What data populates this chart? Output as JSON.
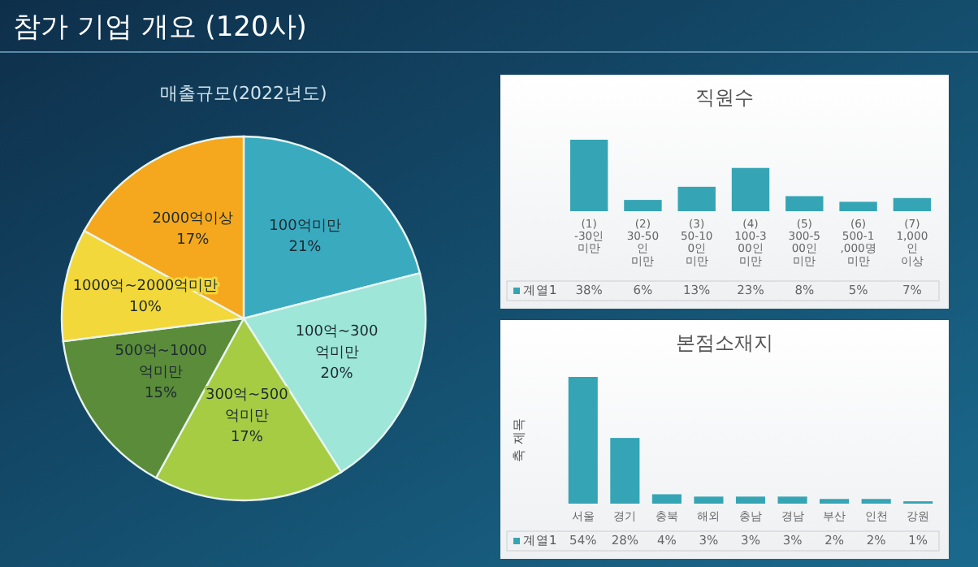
{
  "chart_data": [
    {
      "type": "pie",
      "title": "참가 기업 개요 (120사)",
      "subtitle": "매출규모(2022년도)",
      "categories": [
        "100억미만",
        "100억~300억미만",
        "300억~500억미만",
        "500억~1000억미만",
        "1000억~2000억미만",
        "2000억이상"
      ],
      "values": [
        21,
        20,
        17,
        15,
        10,
        17
      ],
      "value_labels": [
        "21%",
        "20%",
        "17%",
        "15%",
        "10%",
        "17%"
      ],
      "colors": [
        "#3aaabf",
        "#9de6d8",
        "#a6cc44",
        "#5b8c3a",
        "#f2d83a",
        "#f5a81e"
      ]
    },
    {
      "type": "bar",
      "title": "직원수",
      "categories": [
        "(1) -30인 미만",
        "(2) 30-50인 미만",
        "(3) 50-100인 미만",
        "(4) 100-300인 미만",
        "(5) 300-500인 미만",
        "(6) 500-1,000명 미만",
        "(7) 1,000인 이상"
      ],
      "series": [
        {
          "name": "계열1",
          "color": "#35a5b5",
          "values": [
            38,
            6,
            13,
            23,
            8,
            5,
            7
          ],
          "value_labels": [
            "38%",
            "6%",
            "13%",
            "23%",
            "8%",
            "5%",
            "7%"
          ]
        }
      ],
      "legend": "bottom"
    },
    {
      "type": "bar",
      "title": "본점소재지",
      "ylabel": "축 제목",
      "categories": [
        "서울",
        "경기",
        "충북",
        "해외",
        "충남",
        "경남",
        "부산",
        "인천",
        "강원"
      ],
      "series": [
        {
          "name": "계열1",
          "color": "#35a5b5",
          "values": [
            54,
            28,
            4,
            3,
            3,
            3,
            2,
            2,
            1
          ],
          "value_labels": [
            "54%",
            "28%",
            "4%",
            "3%",
            "3%",
            "3%",
            "2%",
            "2%",
            "1%"
          ]
        }
      ],
      "legend": "bottom"
    }
  ]
}
